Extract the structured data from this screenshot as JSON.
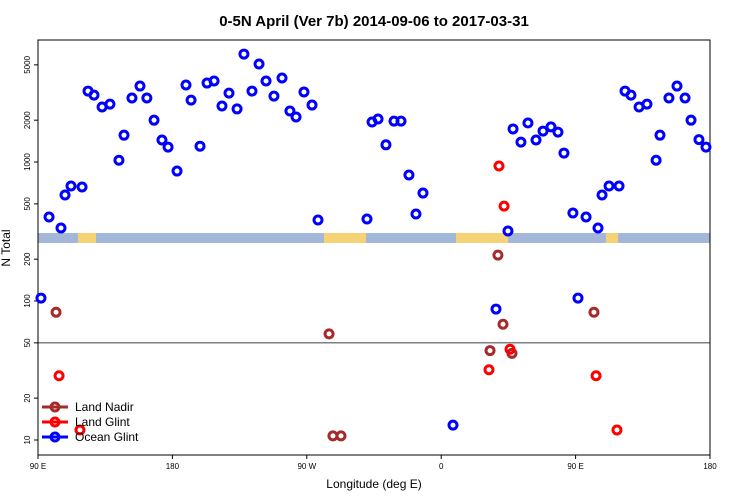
{
  "chart_data": {
    "type": "scatter",
    "title": "0-5N April (Ver 7b)   2014-09-06 to 2017-03-31",
    "xlabel": "Longitude (deg E)",
    "ylabel": "N Total",
    "xlim": [
      90,
      540
    ],
    "ylim": [
      7.8,
      7550
    ],
    "ylog": true,
    "xticks": [
      {
        "value": 90,
        "label": "90 E"
      },
      180,
      {
        "value": 270,
        "label": "90 W"
      },
      {
        "value": 360,
        "label": "0"
      },
      {
        "value": 450,
        "label": "90 E"
      },
      {
        "value": 540,
        "label": "180"
      }
    ],
    "yticks": [
      10,
      20,
      50,
      100,
      200,
      500,
      1000,
      2000,
      5000
    ],
    "hline": 50,
    "legend": "bottomleft",
    "series": [
      {
        "name": "Land Nadir",
        "color": "#a52a2a",
        "x": [
          102.1,
          284.9,
          287.5,
          292.9,
          398.0,
          401.4,
          392.7,
          407.4,
          462.3
        ],
        "values": [
          83,
          58,
          10.7,
          10.7,
          214,
          68,
          44,
          42,
          83
        ]
      },
      {
        "name": "Land Glint",
        "color": "#ff0000",
        "x": [
          104.1,
          118.1,
          398.7,
          402.1,
          392.0,
          406.1,
          463.7,
          477.7
        ],
        "values": [
          29,
          11.8,
          936,
          482,
          32,
          45,
          29,
          11.8
        ]
      },
      {
        "name": "Ocean Glint",
        "color": "#0000ff",
        "x": [
          92.0,
          97.4,
          105.4,
          108.1,
          112.1,
          119.5,
          123.5,
          127.5,
          132.9,
          138.2,
          144.2,
          147.6,
          152.9,
          158.3,
          162.9,
          167.7,
          173.0,
          177.1,
          183.1,
          189.1,
          192.5,
          198.5,
          203.2,
          207.9,
          213.2,
          217.9,
          223.3,
          227.9,
          233.3,
          238.0,
          242.7,
          248.0,
          253.4,
          258.7,
          262.8,
          268.1,
          273.5,
          277.5,
          310.3,
          313.7,
          317.7,
          323.0,
          328.4,
          333.1,
          338.4,
          343.1,
          347.8,
          367.9,
          396.7,
          404.7,
          408.1,
          413.4,
          418.1,
          423.5,
          428.2,
          433.5,
          438.2,
          442.2,
          448.2,
          451.6,
          457.0,
          465.0,
          467.7,
          472.4,
          479.1,
          483.1,
          487.1,
          492.5,
          497.8,
          503.9,
          506.5,
          512.5,
          517.9,
          523.3,
          527.3,
          532.6,
          537.3
        ],
        "values": [
          105,
          402,
          335,
          579,
          672,
          661,
          3240,
          3030,
          2490,
          2610,
          1030,
          1560,
          2890,
          3520,
          2890,
          2000,
          1440,
          1280,
          861,
          3580,
          2790,
          1300,
          3700,
          3830,
          2530,
          3130,
          2410,
          5980,
          3240,
          5070,
          3830,
          2980,
          4020,
          2330,
          2110,
          3190,
          2570,
          383,
          389,
          1940,
          2040,
          1330,
          1970,
          1970,
          806,
          423,
          598,
          12.8,
          87.5,
          319,
          1730,
          1390,
          1910,
          1440,
          1670,
          1790,
          1640,
          1160,
          430,
          105,
          402,
          335,
          579,
          672,
          672,
          3240,
          3030,
          2490,
          2610,
          1030,
          1560,
          2890,
          3520,
          2890,
          2000,
          1450,
          1280
        ]
      }
    ]
  }
}
